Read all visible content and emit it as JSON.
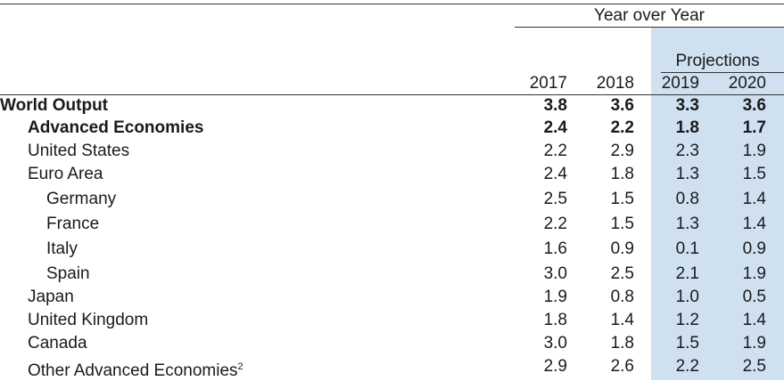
{
  "header": {
    "group_title": "Year over Year",
    "projections_label": "Projections",
    "years": [
      "2017",
      "2018",
      "2019",
      "2020"
    ]
  },
  "rows": [
    {
      "label": "World Output",
      "footnote": "",
      "values": [
        "3.8",
        "3.6",
        "3.3",
        "3.6"
      ]
    },
    {
      "label": "Advanced Economies",
      "footnote": "",
      "values": [
        "2.4",
        "2.2",
        "1.8",
        "1.7"
      ]
    },
    {
      "label": "United States",
      "footnote": "",
      "values": [
        "2.2",
        "2.9",
        "2.3",
        "1.9"
      ]
    },
    {
      "label": "Euro Area",
      "footnote": "",
      "values": [
        "2.4",
        "1.8",
        "1.3",
        "1.5"
      ]
    },
    {
      "label": "Germany",
      "footnote": "",
      "values": [
        "2.5",
        "1.5",
        "0.8",
        "1.4"
      ]
    },
    {
      "label": "France",
      "footnote": "",
      "values": [
        "2.2",
        "1.5",
        "1.3",
        "1.4"
      ]
    },
    {
      "label": "Italy",
      "footnote": "",
      "values": [
        "1.6",
        "0.9",
        "0.1",
        "0.9"
      ]
    },
    {
      "label": "Spain",
      "footnote": "",
      "values": [
        "3.0",
        "2.5",
        "2.1",
        "1.9"
      ]
    },
    {
      "label": "Japan",
      "footnote": "",
      "values": [
        "1.9",
        "0.8",
        "1.0",
        "0.5"
      ]
    },
    {
      "label": "United Kingdom",
      "footnote": "",
      "values": [
        "1.8",
        "1.4",
        "1.2",
        "1.4"
      ]
    },
    {
      "label": "Canada",
      "footnote": "",
      "values": [
        "3.0",
        "1.8",
        "1.5",
        "1.9"
      ]
    },
    {
      "label": "Other Advanced Economies",
      "footnote": "2",
      "values": [
        "2.9",
        "2.6",
        "2.2",
        "2.5"
      ]
    }
  ],
  "colors": {
    "projection_shade": "#cfe0f1",
    "rule": "#333333"
  }
}
